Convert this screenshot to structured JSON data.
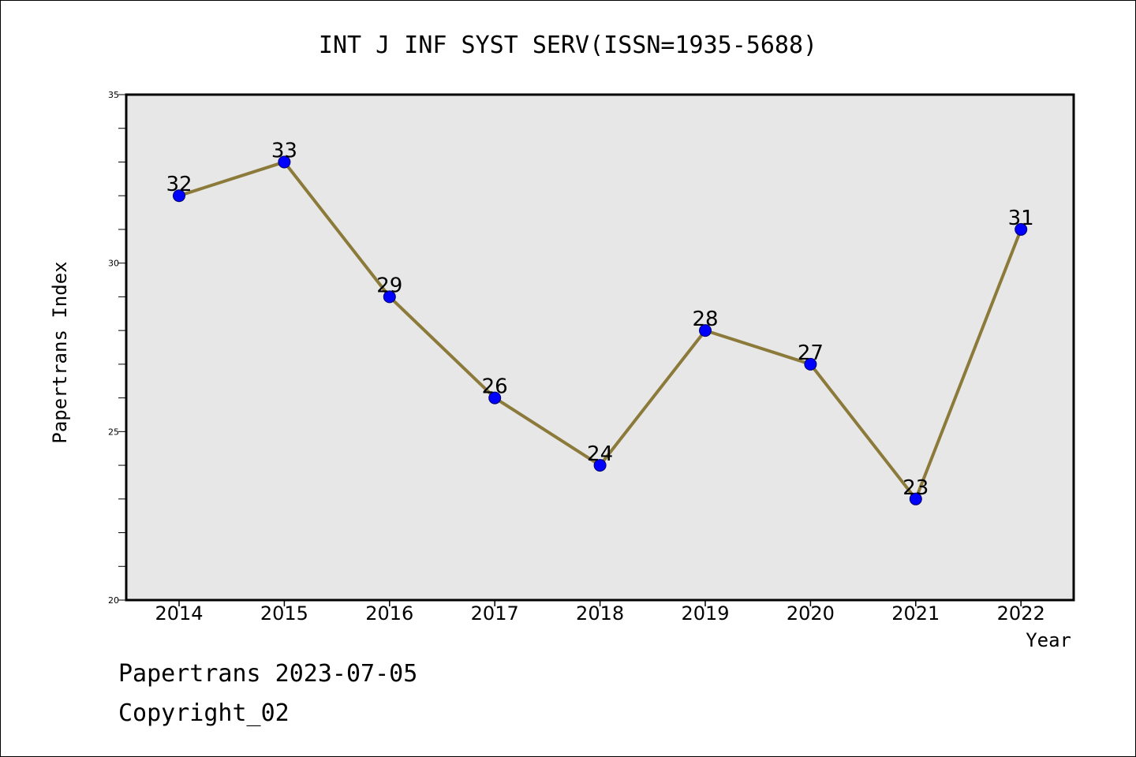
{
  "chart_data": {
    "type": "line",
    "title": "INT J INF SYST SERV(ISSN=1935-5688)",
    "xlabel": "Year",
    "ylabel": "Papertrans Index",
    "categories": [
      "2014",
      "2015",
      "2016",
      "2017",
      "2018",
      "2019",
      "2020",
      "2021",
      "2022"
    ],
    "series": [
      {
        "values": [
          32,
          33,
          29,
          26,
          24,
          28,
          27,
          23,
          31
        ]
      }
    ],
    "ylim": [
      20,
      35
    ],
    "yticks": [
      "20",
      "25",
      "30",
      "35"
    ],
    "grid": false,
    "colors": {
      "plot_background": "#e7e7e7",
      "line": "#8b7a3a",
      "marker": "#0000ff"
    }
  },
  "footer": {
    "line1": "Papertrans 2023-07-05",
    "line2": "Copyright_02"
  }
}
